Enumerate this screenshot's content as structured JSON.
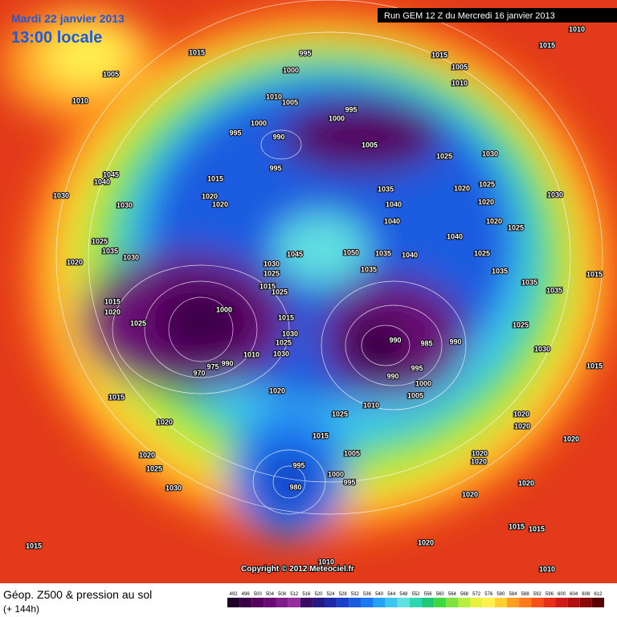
{
  "header": {
    "date": "Mardi 22 janvier 2013",
    "time": "13:00 locale",
    "run": "Run GEM 12 Z du Mercredi 16 janvier 2013"
  },
  "copyright": "Copyright © 2012 Meteociel.fr",
  "footer": {
    "title": "Géop. Z500 & pression au sol",
    "lead": "(+ 144h)"
  },
  "scale": {
    "labels": [
      492,
      496,
      500,
      504,
      508,
      512,
      516,
      520,
      524,
      528,
      532,
      536,
      540,
      544,
      548,
      552,
      556,
      560,
      564,
      568,
      572,
      576,
      580,
      584,
      588,
      592,
      596,
      600,
      604,
      608,
      612
    ],
    "colors": [
      "#1e0028",
      "#3a0046",
      "#55005f",
      "#6b0a76",
      "#811d8b",
      "#952fa0",
      "#3c0a63",
      "#251a85",
      "#1e2aa8",
      "#1840c8",
      "#1a5ce0",
      "#1c78f0",
      "#24a0f5",
      "#3cc6f0",
      "#60e0e0",
      "#2fd7b0",
      "#20c878",
      "#40d840",
      "#80e040",
      "#b8ee40",
      "#e8f040",
      "#fff050",
      "#ffd030",
      "#ffa020",
      "#ff7a18",
      "#f45018",
      "#e83018",
      "#d01c18",
      "#b01010",
      "#8a0808",
      "#5a0000"
    ]
  },
  "isobar_labels": [
    1005,
    1010,
    1015,
    995,
    1000,
    1010,
    1005,
    995,
    1000,
    1000,
    995,
    990,
    1005,
    995,
    1015,
    1005,
    1010,
    1010,
    1015,
    1030,
    1025,
    1035,
    1040,
    1040,
    1020,
    1025,
    1020,
    1030,
    1020,
    1025,
    1040,
    1025,
    1045,
    1050,
    1035,
    1040,
    1035,
    1035,
    1035,
    1035,
    1015,
    1025,
    1030,
    1015,
    990,
    985,
    990,
    995,
    990,
    1000,
    1005,
    1010,
    1020,
    1020,
    1020,
    1020,
    1020,
    1020,
    1020,
    1015,
    1015,
    1020,
    1010,
    1030,
    1035,
    1025,
    1020,
    1030,
    1030,
    1045,
    1040,
    1015,
    1020,
    1020,
    1015,
    1020,
    1025,
    1000,
    975,
    970,
    990,
    1010,
    1030,
    1025,
    1015,
    1025,
    1015,
    1030,
    1025,
    1030,
    1020,
    1015,
    1020,
    1020,
    1025,
    1030,
    1015,
    1025,
    1015,
    1005,
    995,
    980,
    1000,
    995,
    1010
  ]
}
